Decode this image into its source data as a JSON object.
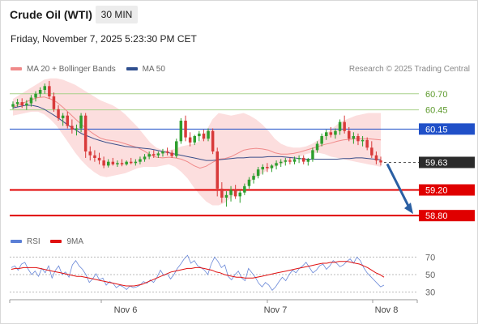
{
  "header": {
    "instrument": "Crude Oil (WTI)",
    "timeframe": "30 MIN",
    "timestamp": "Friday, November 7, 2025 5:23:30 PM CET"
  },
  "legend": {
    "items": [
      {
        "label": "MA 20 + Bollinger Bands",
        "color": "#f08a8a"
      },
      {
        "label": "MA 50",
        "color": "#2f4f8f"
      }
    ],
    "credit": "Research © 2025 Trading Central"
  },
  "rsi_legend": {
    "items": [
      {
        "label": "RSI",
        "color": "#5b7fd6"
      },
      {
        "label": "9MA",
        "color": "#e01010"
      }
    ]
  },
  "colors": {
    "up": "#2e9e2e",
    "down": "#d83a3a",
    "band": "#fcdede",
    "ma20": "#f08a8a",
    "ma50": "#3b4f8a",
    "support": "#e00000",
    "pivot": "#1f4fc8",
    "resistance": "#a8d08a",
    "arrow": "#2a5fa3"
  },
  "chart_data": [
    {
      "type": "candlestick",
      "x_labels": [
        "Nov 6",
        "Nov 7",
        "Nov 8"
      ],
      "ylim": [
        58.6,
        60.95
      ],
      "candles": [
        [
          60.5,
          60.58,
          60.46,
          60.54
        ],
        [
          60.54,
          60.62,
          60.5,
          60.57
        ],
        [
          60.57,
          60.63,
          60.48,
          60.52
        ],
        [
          60.52,
          60.6,
          60.45,
          60.55
        ],
        [
          60.55,
          60.68,
          60.5,
          60.64
        ],
        [
          60.64,
          60.74,
          60.58,
          60.7
        ],
        [
          60.7,
          60.8,
          60.65,
          60.76
        ],
        [
          60.76,
          60.86,
          60.7,
          60.82
        ],
        [
          60.82,
          60.9,
          60.62,
          60.66
        ],
        [
          60.66,
          60.72,
          60.42,
          60.46
        ],
        [
          60.46,
          60.52,
          60.28,
          60.32
        ],
        [
          60.32,
          60.4,
          60.2,
          60.36
        ],
        [
          60.36,
          60.42,
          60.16,
          60.2
        ],
        [
          60.2,
          60.3,
          60.08,
          60.14
        ],
        [
          60.14,
          60.22,
          60.05,
          60.16
        ],
        [
          60.16,
          60.4,
          60.1,
          60.36
        ],
        [
          60.36,
          60.4,
          59.7,
          59.8
        ],
        [
          59.8,
          59.88,
          59.66,
          59.74
        ],
        [
          59.74,
          59.82,
          59.64,
          59.7
        ],
        [
          59.7,
          59.78,
          59.6,
          59.66
        ],
        [
          59.66,
          59.72,
          59.54,
          59.58
        ],
        [
          59.58,
          59.68,
          59.55,
          59.64
        ],
        [
          59.64,
          59.7,
          59.58,
          59.6
        ],
        [
          59.6,
          59.66,
          59.56,
          59.62
        ],
        [
          59.62,
          59.68,
          59.57,
          59.6
        ],
        [
          59.6,
          59.66,
          59.58,
          59.64
        ],
        [
          59.64,
          59.7,
          59.6,
          59.62
        ],
        [
          59.62,
          59.68,
          59.58,
          59.64
        ],
        [
          59.64,
          59.72,
          59.6,
          59.68
        ],
        [
          59.68,
          59.76,
          59.64,
          59.72
        ],
        [
          59.72,
          59.8,
          59.68,
          59.76
        ],
        [
          59.76,
          59.82,
          59.7,
          59.74
        ],
        [
          59.74,
          59.8,
          59.7,
          59.77
        ],
        [
          59.77,
          59.84,
          59.72,
          59.8
        ],
        [
          59.8,
          59.86,
          59.74,
          59.78
        ],
        [
          59.78,
          59.82,
          59.7,
          59.73
        ],
        [
          59.73,
          60.0,
          59.7,
          59.96
        ],
        [
          59.96,
          60.32,
          59.92,
          60.28
        ],
        [
          60.28,
          60.36,
          59.96,
          60.02
        ],
        [
          60.02,
          60.1,
          59.88,
          59.94
        ],
        [
          59.94,
          60.06,
          59.9,
          60.04
        ],
        [
          60.04,
          60.12,
          59.96,
          60.08
        ],
        [
          60.08,
          60.14,
          59.96,
          60.0
        ],
        [
          60.0,
          60.16,
          59.96,
          60.12
        ],
        [
          60.12,
          60.16,
          59.76,
          59.8
        ],
        [
          59.8,
          59.86,
          59.1,
          59.22
        ],
        [
          59.22,
          59.32,
          59.0,
          59.08
        ],
        [
          59.08,
          59.18,
          58.94,
          59.12
        ],
        [
          59.12,
          59.26,
          59.02,
          59.2
        ],
        [
          59.2,
          59.28,
          59.06,
          59.1
        ],
        [
          59.1,
          59.2,
          59.0,
          59.16
        ],
        [
          59.16,
          59.3,
          59.12,
          59.26
        ],
        [
          59.26,
          59.4,
          59.22,
          59.36
        ],
        [
          59.36,
          59.46,
          59.3,
          59.42
        ],
        [
          59.42,
          59.56,
          59.38,
          59.52
        ],
        [
          59.52,
          59.6,
          59.44,
          59.56
        ],
        [
          59.56,
          59.62,
          59.48,
          59.54
        ],
        [
          59.54,
          59.6,
          59.48,
          59.58
        ],
        [
          59.58,
          59.66,
          59.52,
          59.62
        ],
        [
          59.62,
          59.68,
          59.56,
          59.64
        ],
        [
          59.64,
          59.7,
          59.58,
          59.66
        ],
        [
          59.66,
          59.7,
          59.6,
          59.64
        ],
        [
          59.64,
          59.72,
          59.6,
          59.68
        ],
        [
          59.68,
          59.74,
          59.62,
          59.7
        ],
        [
          59.7,
          59.74,
          59.6,
          59.64
        ],
        [
          59.64,
          59.7,
          59.58,
          59.68
        ],
        [
          59.68,
          59.86,
          59.64,
          59.82
        ],
        [
          59.82,
          59.96,
          59.78,
          59.92
        ],
        [
          59.92,
          60.08,
          59.88,
          60.04
        ],
        [
          60.04,
          60.14,
          59.98,
          60.1
        ],
        [
          60.1,
          60.18,
          60.02,
          60.06
        ],
        [
          60.06,
          60.16,
          60.0,
          60.12
        ],
        [
          60.12,
          60.3,
          60.06,
          60.26
        ],
        [
          60.26,
          60.36,
          60.08,
          60.12
        ],
        [
          60.12,
          60.18,
          59.96,
          60.0
        ],
        [
          60.0,
          60.1,
          59.92,
          60.04
        ],
        [
          60.04,
          60.08,
          59.9,
          59.96
        ],
        [
          59.96,
          60.04,
          59.88,
          59.98
        ],
        [
          59.98,
          60.02,
          59.82,
          59.86
        ],
        [
          59.86,
          59.96,
          59.7,
          59.74
        ],
        [
          59.74,
          59.8,
          59.6,
          59.66
        ],
        [
          59.66,
          59.72,
          59.58,
          59.63
        ]
      ],
      "bollinger": {
        "upper": [
          60.62,
          60.68,
          60.74,
          60.8,
          60.86,
          60.92,
          60.94,
          60.94,
          60.92,
          60.88,
          60.84,
          60.78,
          60.72,
          60.66,
          60.6,
          60.56,
          60.52,
          60.46,
          60.38,
          60.28,
          60.18,
          60.06,
          59.94,
          59.86,
          59.82,
          59.82,
          59.84,
          59.88,
          59.9,
          59.92,
          59.96,
          60.12,
          60.3,
          60.4,
          60.38,
          60.36,
          60.38,
          60.4,
          60.36,
          60.3,
          60.22,
          60.12,
          60.0,
          59.92,
          59.88,
          59.86,
          59.86,
          59.88,
          59.92,
          59.98,
          60.06,
          60.14,
          60.22,
          60.28,
          60.32,
          60.36,
          60.38,
          60.4,
          60.4,
          60.4
        ],
        "lower": [
          60.36,
          60.38,
          60.4,
          60.42,
          60.42,
          60.38,
          60.3,
          60.2,
          60.06,
          59.92,
          59.78,
          59.66,
          59.56,
          59.48,
          59.42,
          59.4,
          59.42,
          59.44,
          59.46,
          59.5,
          59.54,
          59.56,
          59.56,
          59.56,
          59.58,
          59.6,
          59.56,
          59.48,
          59.38,
          59.24,
          59.12,
          59.02,
          58.96,
          58.96,
          59.0,
          59.08,
          59.16,
          59.24,
          59.32,
          59.4,
          59.46,
          59.52,
          59.56,
          59.6,
          59.64,
          59.68,
          59.72,
          59.76,
          59.78,
          59.78,
          59.76,
          59.72,
          59.7,
          59.68,
          59.66,
          59.64,
          59.62,
          59.6,
          59.58,
          59.56
        ],
        "ma20": [
          60.49,
          60.53,
          60.57,
          60.61,
          60.64,
          60.65,
          60.62,
          60.57,
          60.49,
          60.4,
          60.31,
          60.22,
          60.14,
          60.07,
          60.01,
          59.98,
          59.97,
          59.95,
          59.92,
          59.89,
          59.86,
          59.81,
          59.75,
          59.71,
          59.7,
          59.71,
          59.7,
          59.68,
          59.64,
          59.58,
          59.54,
          59.57,
          59.63,
          59.68,
          59.69,
          59.72,
          59.77,
          59.82,
          59.84,
          59.85,
          59.84,
          59.82,
          59.78,
          59.76,
          59.76,
          59.77,
          59.79,
          59.82,
          59.85,
          59.88,
          59.91,
          59.93,
          59.96,
          59.98,
          59.99,
          60.0,
          60.0,
          60.0,
          59.99,
          59.98
        ]
      },
      "ma50": [
        60.48,
        60.5,
        60.52,
        60.52,
        60.5,
        60.46,
        60.4,
        60.34,
        60.27,
        60.2,
        60.14,
        60.08,
        60.04,
        60.0,
        59.97,
        59.94,
        59.92,
        59.9,
        59.88,
        59.87,
        59.86,
        59.85,
        59.84,
        59.82,
        59.8,
        59.78,
        59.76,
        59.74,
        59.72,
        59.7,
        59.68,
        59.66,
        59.66,
        59.67,
        59.68,
        59.69,
        59.7,
        59.7,
        59.71,
        59.71,
        59.71,
        59.72,
        59.72,
        59.72,
        59.71,
        59.7,
        59.69,
        59.68,
        59.68,
        59.68,
        59.68,
        59.68,
        59.68,
        59.69,
        59.69,
        59.7,
        59.7,
        59.69,
        59.68,
        59.67
      ],
      "levels": [
        {
          "value": 60.7,
          "label": "60.70",
          "kind": "resistance"
        },
        {
          "value": 60.45,
          "label": "60.45",
          "kind": "resistance"
        },
        {
          "value": 60.15,
          "label": "60.15",
          "kind": "pivot"
        },
        {
          "value": 59.63,
          "label": "59.63",
          "kind": "last"
        },
        {
          "value": 59.2,
          "label": "59.20",
          "kind": "support"
        },
        {
          "value": 58.8,
          "label": "58.80",
          "kind": "support"
        }
      ],
      "forecast_arrow": {
        "from": 59.63,
        "to": 58.8
      }
    },
    {
      "type": "line",
      "name": "RSI",
      "ylim": [
        25,
        75
      ],
      "y_ticks": [
        70,
        50,
        30
      ],
      "rsi": [
        58,
        60,
        55,
        62,
        64,
        56,
        50,
        54,
        48,
        57,
        52,
        60,
        46,
        55,
        60,
        50,
        53,
        47,
        61,
        66,
        60,
        56,
        50,
        41,
        45,
        51,
        44,
        46,
        38,
        42,
        40,
        35,
        38,
        36,
        33,
        37,
        35,
        36,
        38,
        42,
        40,
        44,
        41,
        47,
        55,
        49,
        51,
        45,
        50,
        57,
        62,
        68,
        72,
        63,
        66,
        60,
        58,
        55,
        50,
        62,
        70,
        65,
        58,
        61,
        48,
        44,
        50,
        54,
        46,
        43,
        57,
        52,
        47,
        40,
        36,
        41,
        38,
        32,
        36,
        42,
        47,
        43,
        50,
        55,
        52,
        57,
        60,
        64,
        58,
        52,
        55,
        60,
        62,
        56,
        60,
        66,
        63,
        59,
        61,
        65,
        68,
        63,
        70,
        66,
        58,
        52,
        48,
        44,
        40,
        36,
        38
      ],
      "ma9": [
        56,
        57,
        57,
        58,
        58,
        58,
        58,
        57,
        56,
        55,
        54,
        53,
        52,
        51,
        50,
        49,
        48,
        48,
        47,
        46,
        45,
        44,
        43,
        42,
        41,
        40,
        39,
        38,
        37,
        37,
        37,
        38,
        39,
        41,
        43,
        45,
        47,
        49,
        51,
        53,
        54,
        55,
        56,
        57,
        57,
        58,
        58,
        57,
        56,
        55,
        53,
        52,
        50,
        49,
        48,
        47,
        47,
        46,
        46,
        46,
        47,
        48,
        49,
        50,
        51,
        52,
        53,
        54,
        55,
        56,
        57,
        58,
        59,
        60,
        61,
        62,
        63,
        63,
        64,
        64,
        65,
        65,
        65,
        64,
        63,
        62,
        60,
        58,
        55,
        52,
        50,
        47
      ]
    }
  ]
}
